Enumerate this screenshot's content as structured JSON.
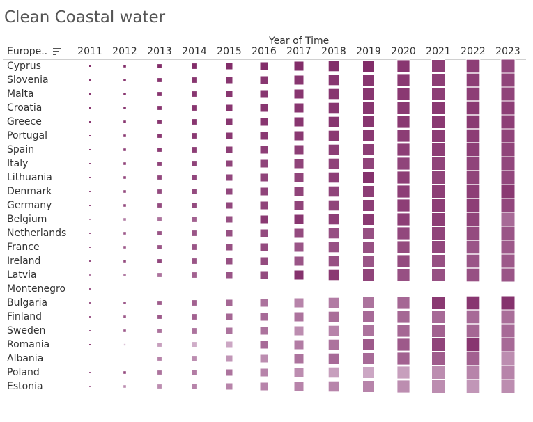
{
  "chart_data": {
    "type": "heatmap",
    "title": "Clean Coastal water",
    "column_header": "Year of Time",
    "row_header": "Europe..",
    "years": [
      "2011",
      "2012",
      "2013",
      "2014",
      "2015",
      "2016",
      "2017",
      "2018",
      "2019",
      "2020",
      "2021",
      "2022",
      "2023"
    ],
    "color_low": "#e6d3e4",
    "color_high": "#7d2463",
    "rows": [
      {
        "country": "Cyprus",
        "values": [
          0.03,
          0.18,
          0.29,
          0.39,
          0.5,
          0.6,
          0.7,
          0.78,
          0.85,
          0.91,
          0.95,
          0.98,
          1.0
        ],
        "intensity": [
          0.95,
          0.95,
          0.95,
          0.95,
          0.95,
          0.95,
          0.95,
          0.95,
          0.95,
          0.9,
          0.85,
          0.85,
          0.8
        ]
      },
      {
        "country": "Slovenia",
        "values": [
          0.03,
          0.18,
          0.29,
          0.39,
          0.5,
          0.6,
          0.7,
          0.78,
          0.85,
          0.91,
          0.95,
          0.98,
          1.0
        ],
        "intensity": [
          0.9,
          0.9,
          0.9,
          0.9,
          0.9,
          0.9,
          0.9,
          0.9,
          0.9,
          0.88,
          0.85,
          0.85,
          0.82
        ]
      },
      {
        "country": "Malta",
        "values": [
          0.03,
          0.18,
          0.29,
          0.39,
          0.5,
          0.6,
          0.7,
          0.78,
          0.85,
          0.91,
          0.95,
          0.98,
          1.0
        ],
        "intensity": [
          0.9,
          0.9,
          0.9,
          0.9,
          0.9,
          0.9,
          0.9,
          0.9,
          0.9,
          0.88,
          0.85,
          0.85,
          0.82
        ]
      },
      {
        "country": "Croatia",
        "values": [
          0.03,
          0.18,
          0.29,
          0.39,
          0.5,
          0.6,
          0.7,
          0.78,
          0.85,
          0.91,
          0.95,
          0.98,
          1.0
        ],
        "intensity": [
          0.9,
          0.9,
          0.9,
          0.9,
          0.9,
          0.9,
          0.9,
          0.9,
          0.9,
          0.88,
          0.88,
          0.88,
          0.85
        ]
      },
      {
        "country": "Greece",
        "values": [
          0.03,
          0.18,
          0.29,
          0.39,
          0.5,
          0.6,
          0.7,
          0.78,
          0.85,
          0.91,
          0.95,
          0.98,
          1.0
        ],
        "intensity": [
          0.9,
          0.9,
          0.9,
          0.9,
          0.9,
          0.9,
          0.9,
          0.9,
          0.9,
          0.88,
          0.88,
          0.88,
          0.85
        ]
      },
      {
        "country": "Portugal",
        "values": [
          0.03,
          0.18,
          0.29,
          0.39,
          0.5,
          0.6,
          0.7,
          0.78,
          0.85,
          0.91,
          0.95,
          0.98,
          1.0
        ],
        "intensity": [
          0.88,
          0.88,
          0.88,
          0.88,
          0.88,
          0.88,
          0.88,
          0.88,
          0.88,
          0.86,
          0.86,
          0.86,
          0.82
        ]
      },
      {
        "country": "Spain",
        "values": [
          0.03,
          0.18,
          0.29,
          0.39,
          0.5,
          0.6,
          0.7,
          0.78,
          0.85,
          0.91,
          0.95,
          0.98,
          1.0
        ],
        "intensity": [
          0.85,
          0.85,
          0.85,
          0.85,
          0.85,
          0.85,
          0.85,
          0.85,
          0.85,
          0.85,
          0.85,
          0.85,
          0.82
        ]
      },
      {
        "country": "Italy",
        "values": [
          0.03,
          0.18,
          0.29,
          0.39,
          0.5,
          0.6,
          0.7,
          0.78,
          0.85,
          0.91,
          0.95,
          0.98,
          1.0
        ],
        "intensity": [
          0.82,
          0.82,
          0.82,
          0.82,
          0.82,
          0.82,
          0.82,
          0.82,
          0.82,
          0.82,
          0.82,
          0.82,
          0.8
        ]
      },
      {
        "country": "Lithuania",
        "values": [
          0.03,
          0.18,
          0.29,
          0.39,
          0.5,
          0.6,
          0.7,
          0.78,
          0.85,
          0.91,
          0.95,
          0.98,
          1.0
        ],
        "intensity": [
          0.8,
          0.8,
          0.8,
          0.8,
          0.8,
          0.82,
          0.82,
          0.85,
          0.92,
          0.85,
          0.82,
          0.82,
          0.8
        ]
      },
      {
        "country": "Denmark",
        "values": [
          0.03,
          0.18,
          0.29,
          0.39,
          0.5,
          0.6,
          0.7,
          0.78,
          0.85,
          0.91,
          0.95,
          0.98,
          1.0
        ],
        "intensity": [
          0.78,
          0.78,
          0.78,
          0.78,
          0.8,
          0.82,
          0.82,
          0.82,
          0.85,
          0.85,
          0.85,
          0.85,
          0.88
        ]
      },
      {
        "country": "Germany",
        "values": [
          0.03,
          0.18,
          0.29,
          0.39,
          0.5,
          0.6,
          0.7,
          0.78,
          0.85,
          0.91,
          0.95,
          0.98,
          1.0
        ],
        "intensity": [
          0.78,
          0.78,
          0.78,
          0.78,
          0.8,
          0.82,
          0.82,
          0.82,
          0.85,
          0.85,
          0.85,
          0.85,
          0.8
        ]
      },
      {
        "country": "Belgium",
        "values": [
          0.03,
          0.18,
          0.29,
          0.39,
          0.5,
          0.6,
          0.7,
          0.78,
          0.85,
          0.91,
          0.95,
          0.98,
          1.0
        ],
        "intensity": [
          0.4,
          0.5,
          0.55,
          0.65,
          0.75,
          0.88,
          0.9,
          0.85,
          0.88,
          0.85,
          0.85,
          0.82,
          0.6
        ]
      },
      {
        "country": "Netherlands",
        "values": [
          0.03,
          0.18,
          0.29,
          0.39,
          0.5,
          0.6,
          0.7,
          0.78,
          0.85,
          0.91,
          0.95,
          0.98,
          1.0
        ],
        "intensity": [
          0.7,
          0.7,
          0.72,
          0.72,
          0.75,
          0.78,
          0.78,
          0.75,
          0.75,
          0.8,
          0.82,
          0.78,
          0.72
        ]
      },
      {
        "country": "France",
        "values": [
          0.03,
          0.18,
          0.29,
          0.39,
          0.5,
          0.6,
          0.7,
          0.78,
          0.85,
          0.91,
          0.95,
          0.98,
          1.0
        ],
        "intensity": [
          0.7,
          0.7,
          0.72,
          0.72,
          0.75,
          0.78,
          0.72,
          0.75,
          0.75,
          0.78,
          0.8,
          0.72,
          0.7
        ]
      },
      {
        "country": "Ireland",
        "values": [
          0.03,
          0.18,
          0.29,
          0.39,
          0.5,
          0.6,
          0.7,
          0.78,
          0.85,
          0.91,
          0.95,
          0.98,
          1.0
        ],
        "intensity": [
          0.75,
          0.78,
          0.8,
          0.72,
          0.75,
          0.78,
          0.72,
          0.75,
          0.72,
          0.78,
          0.75,
          0.72,
          0.7
        ]
      },
      {
        "country": "Latvia",
        "values": [
          0.03,
          0.18,
          0.29,
          0.39,
          0.5,
          0.6,
          0.7,
          0.78,
          0.85,
          0.91,
          0.95,
          0.98,
          1.0
        ],
        "intensity": [
          0.5,
          0.5,
          0.55,
          0.65,
          0.72,
          0.78,
          0.92,
          0.88,
          0.82,
          0.75,
          0.75,
          0.75,
          0.72
        ]
      },
      {
        "country": "Montenegro",
        "values": [
          0.03,
          0,
          0,
          0,
          0,
          0,
          0,
          0,
          0,
          0,
          0,
          0,
          0
        ],
        "intensity": [
          0.7,
          0,
          0,
          0,
          0,
          0,
          0,
          0,
          0,
          0,
          0,
          0,
          0
        ]
      },
      {
        "country": "Bulgaria",
        "values": [
          0.03,
          0.18,
          0.29,
          0.39,
          0.5,
          0.6,
          0.7,
          0.78,
          0.85,
          0.91,
          0.95,
          0.98,
          1.0
        ],
        "intensity": [
          0.7,
          0.7,
          0.68,
          0.65,
          0.62,
          0.55,
          0.45,
          0.5,
          0.55,
          0.62,
          0.88,
          0.9,
          0.92
        ]
      },
      {
        "country": "Finland",
        "values": [
          0.03,
          0.18,
          0.29,
          0.39,
          0.5,
          0.6,
          0.7,
          0.78,
          0.85,
          0.91,
          0.95,
          0.98,
          1.0
        ],
        "intensity": [
          0.7,
          0.7,
          0.7,
          0.65,
          0.62,
          0.6,
          0.55,
          0.58,
          0.6,
          0.62,
          0.6,
          0.6,
          0.58
        ]
      },
      {
        "country": "Sweden",
        "values": [
          0.03,
          0.18,
          0.29,
          0.39,
          0.5,
          0.6,
          0.7,
          0.78,
          0.85,
          0.91,
          0.95,
          0.98,
          1.0
        ],
        "intensity": [
          0.7,
          0.7,
          0.55,
          0.55,
          0.55,
          0.55,
          0.4,
          0.45,
          0.55,
          0.62,
          0.65,
          0.62,
          0.6
        ]
      },
      {
        "country": "Romania",
        "values": [
          0.03,
          0.12,
          0.29,
          0.39,
          0.5,
          0.6,
          0.7,
          0.78,
          0.85,
          0.91,
          0.95,
          0.98,
          1.0
        ],
        "intensity": [
          0.85,
          0.1,
          0.3,
          0.22,
          0.25,
          0.6,
          0.5,
          0.55,
          0.7,
          0.7,
          0.82,
          0.9,
          0.6
        ]
      },
      {
        "country": "Albania",
        "values": [
          0,
          0,
          0.29,
          0.39,
          0.5,
          0.6,
          0.7,
          0.78,
          0.85,
          0.91,
          0.95,
          0.98,
          1.0
        ],
        "intensity": [
          0,
          0,
          0.45,
          0.4,
          0.35,
          0.4,
          0.55,
          0.6,
          0.6,
          0.65,
          0.68,
          0.65,
          0.4
        ]
      },
      {
        "country": "Poland",
        "values": [
          0.03,
          0.18,
          0.29,
          0.39,
          0.5,
          0.6,
          0.7,
          0.78,
          0.85,
          0.91,
          0.95,
          0.98,
          1.0
        ],
        "intensity": [
          0.7,
          0.78,
          0.55,
          0.5,
          0.55,
          0.45,
          0.4,
          0.3,
          0.25,
          0.3,
          0.4,
          0.45,
          0.45
        ]
      },
      {
        "country": "Estonia",
        "values": [
          0.03,
          0.18,
          0.29,
          0.39,
          0.5,
          0.6,
          0.7,
          0.78,
          0.85,
          0.91,
          0.95,
          0.98,
          1.0
        ],
        "intensity": [
          0.55,
          0.4,
          0.4,
          0.45,
          0.45,
          0.45,
          0.45,
          0.45,
          0.45,
          0.4,
          0.4,
          0.35,
          0.4
        ]
      }
    ]
  }
}
